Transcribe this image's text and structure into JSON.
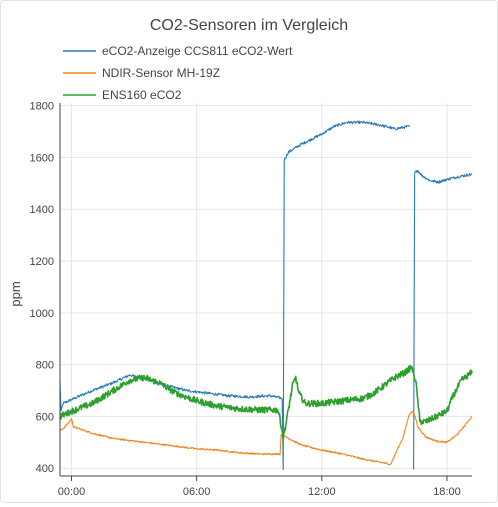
{
  "chart_data": {
    "type": "line",
    "title": "CO2-Sensoren im Vergleich",
    "xlabel": "",
    "ylabel": "ppm",
    "ylim": [
      370,
      1810
    ],
    "xlim": [
      -0.55,
      19.2
    ],
    "grid": true,
    "legend_position": "top-left",
    "x_ticks": [
      {
        "value": 0,
        "label": "00:00"
      },
      {
        "value": 6,
        "label": "06:00"
      },
      {
        "value": 12,
        "label": "12:00"
      },
      {
        "value": 18,
        "label": "18:00"
      }
    ],
    "y_ticks": [
      400,
      600,
      800,
      1000,
      1200,
      1400,
      1600,
      1800
    ],
    "series": [
      {
        "name": "eCO2-Anzeige CCS811 eCO2-Wert",
        "color": "#2b7bb9",
        "noise": 5,
        "points": [
          [
            -0.55,
            740
          ],
          [
            -0.5,
            620
          ],
          [
            -0.4,
            650
          ],
          [
            0.0,
            665
          ],
          [
            1.0,
            700
          ],
          [
            2.0,
            730
          ],
          [
            2.8,
            760
          ],
          [
            3.5,
            745
          ],
          [
            4.5,
            720
          ],
          [
            5.5,
            700
          ],
          [
            6.5,
            690
          ],
          [
            7.5,
            680
          ],
          [
            8.5,
            675
          ],
          [
            9.5,
            680
          ],
          [
            10.1,
            670
          ],
          [
            10.15,
            395
          ],
          [
            10.2,
            1590
          ],
          [
            10.4,
            1620
          ],
          [
            11.0,
            1650
          ],
          [
            12.0,
            1690
          ],
          [
            12.6,
            1720
          ],
          [
            13.2,
            1735
          ],
          [
            14.0,
            1735
          ],
          [
            14.8,
            1725
          ],
          [
            15.5,
            1710
          ],
          [
            16.2,
            1720
          ]
        ],
        "segment_2": [
          [
            16.4,
            395
          ],
          [
            16.45,
            1540
          ],
          [
            16.6,
            1550
          ],
          [
            16.8,
            1530
          ],
          [
            17.2,
            1510
          ],
          [
            17.6,
            1505
          ],
          [
            18.0,
            1515
          ],
          [
            18.5,
            1525
          ],
          [
            19.2,
            1535
          ]
        ]
      },
      {
        "name": "NDIR-Sensor MH-19Z",
        "color": "#f0861c",
        "noise": 3,
        "points": [
          [
            -0.55,
            545
          ],
          [
            -0.3,
            560
          ],
          [
            -0.1,
            580
          ],
          [
            0.0,
            590
          ],
          [
            0.1,
            560
          ],
          [
            1.0,
            535
          ],
          [
            2.0,
            515
          ],
          [
            3.0,
            505
          ],
          [
            4.0,
            495
          ],
          [
            5.0,
            485
          ],
          [
            6.0,
            475
          ],
          [
            7.0,
            470
          ],
          [
            8.0,
            460
          ],
          [
            9.0,
            455
          ],
          [
            10.0,
            455
          ],
          [
            10.05,
            530
          ],
          [
            10.3,
            520
          ],
          [
            11.0,
            490
          ],
          [
            12.0,
            470
          ],
          [
            13.0,
            455
          ],
          [
            14.0,
            435
          ],
          [
            15.0,
            420
          ],
          [
            15.3,
            415
          ],
          [
            15.5,
            450
          ],
          [
            15.9,
            520
          ],
          [
            16.2,
            610
          ],
          [
            16.4,
            620
          ],
          [
            16.6,
            560
          ],
          [
            17.0,
            520
          ],
          [
            17.5,
            505
          ],
          [
            18.0,
            500
          ],
          [
            18.5,
            530
          ],
          [
            19.0,
            580
          ],
          [
            19.2,
            600
          ]
        ]
      },
      {
        "name": "ENS160 eCO2",
        "color": "#2ca02c",
        "noise": 12,
        "points": [
          [
            -0.55,
            600
          ],
          [
            0.0,
            620
          ],
          [
            1.0,
            650
          ],
          [
            2.0,
            700
          ],
          [
            2.8,
            740
          ],
          [
            3.5,
            750
          ],
          [
            4.2,
            730
          ],
          [
            5.0,
            690
          ],
          [
            6.0,
            660
          ],
          [
            7.0,
            640
          ],
          [
            8.0,
            630
          ],
          [
            9.0,
            625
          ],
          [
            9.9,
            625
          ],
          [
            10.0,
            590
          ],
          [
            10.15,
            520
          ],
          [
            10.3,
            580
          ],
          [
            10.6,
            720
          ],
          [
            10.75,
            750
          ],
          [
            10.9,
            690
          ],
          [
            11.2,
            650
          ],
          [
            12.0,
            650
          ],
          [
            13.0,
            660
          ],
          [
            14.0,
            670
          ],
          [
            14.5,
            690
          ],
          [
            15.0,
            720
          ],
          [
            15.5,
            750
          ],
          [
            16.0,
            770
          ],
          [
            16.3,
            790
          ],
          [
            16.5,
            740
          ],
          [
            16.7,
            580
          ],
          [
            17.0,
            580
          ],
          [
            17.5,
            600
          ],
          [
            18.0,
            620
          ],
          [
            18.3,
            680
          ],
          [
            18.7,
            740
          ],
          [
            19.2,
            770
          ]
        ]
      }
    ]
  }
}
